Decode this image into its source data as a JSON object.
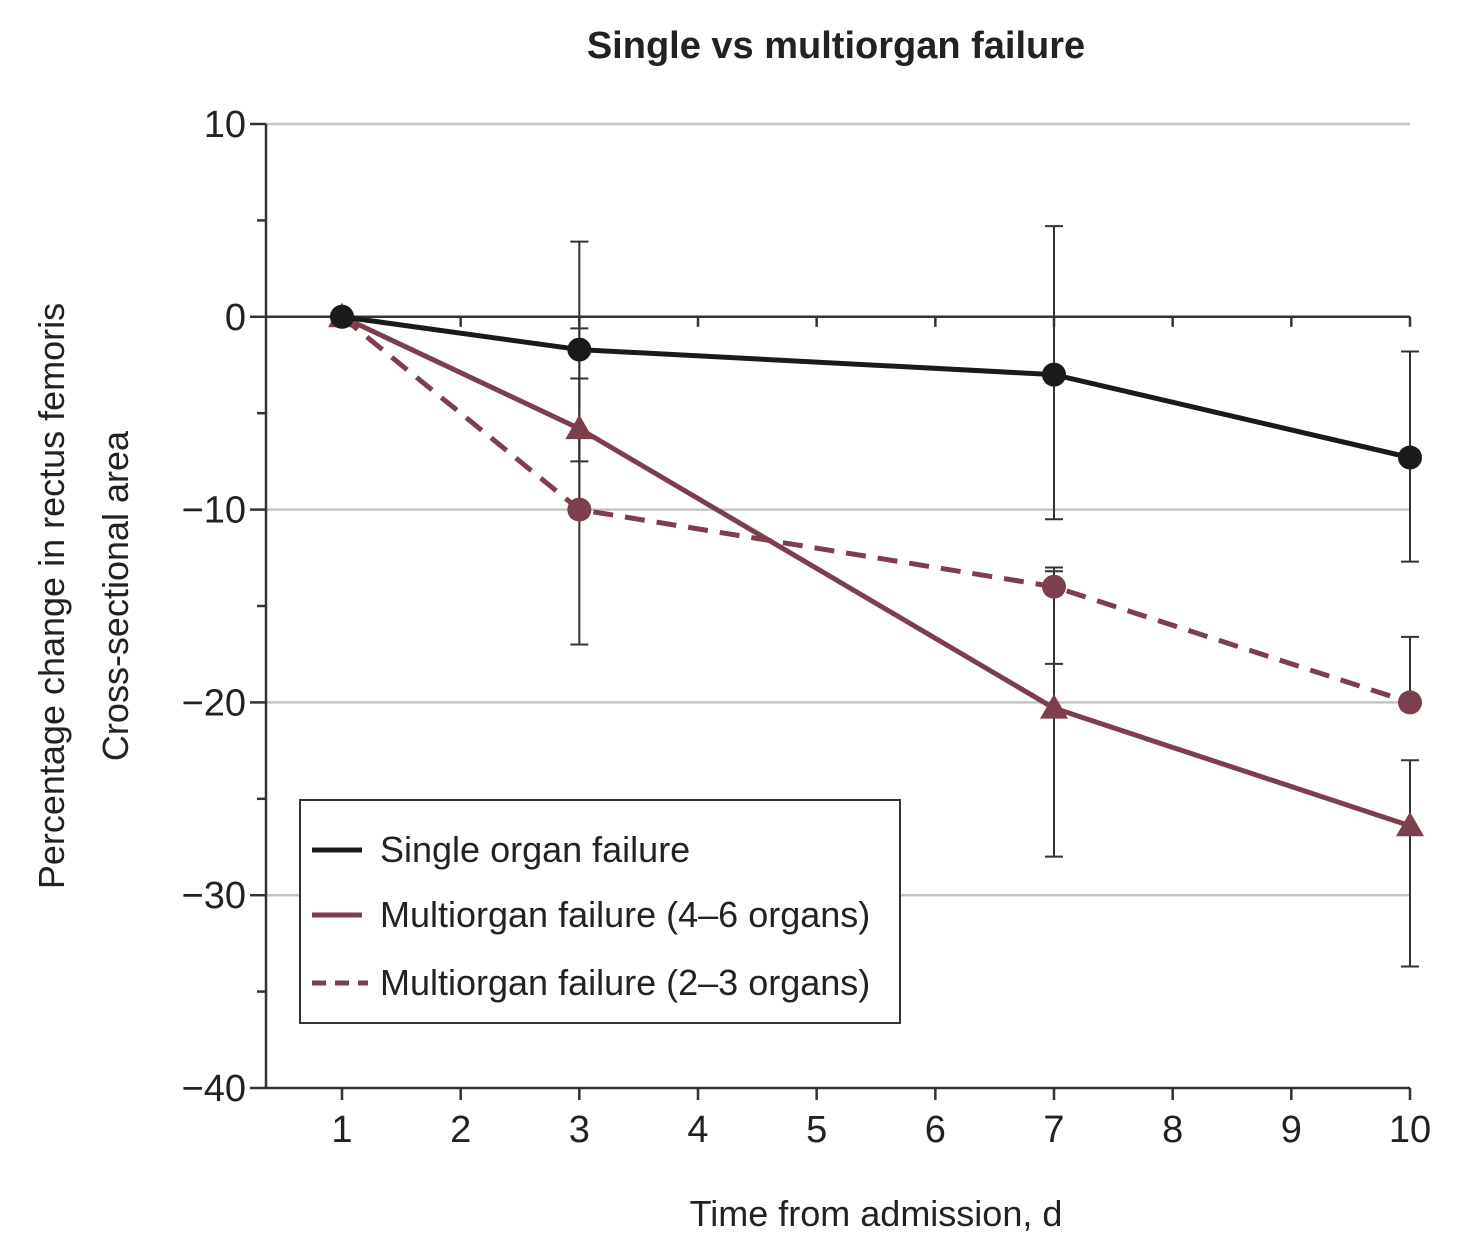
{
  "chart_data": {
    "type": "line",
    "title": "Single vs multiorgan failure",
    "xlabel": "Time from admission, d",
    "ylabel_lines": [
      "Percentage change in rectus femoris",
      "Cross-sectional area"
    ],
    "xlim": [
      0.4,
      10
    ],
    "ylim": [
      -40,
      10
    ],
    "x_ticks": [
      1,
      2,
      3,
      4,
      5,
      6,
      7,
      8,
      9,
      10
    ],
    "x_tick_labels": [
      "1",
      "2",
      "3",
      "4",
      "5",
      "6",
      "7",
      "8",
      "9",
      "10"
    ],
    "y_ticks": [
      10,
      0,
      -10,
      -20,
      -30,
      -40
    ],
    "y_tick_labels": [
      "10",
      "0",
      "−10",
      "−20",
      "−30",
      "−40"
    ],
    "y_minor_ticks": [
      5,
      -5,
      -15,
      -25,
      -35
    ],
    "gridlines_y": [
      10,
      -10,
      -20,
      -30
    ],
    "legend_position": "lower-left",
    "series": [
      {
        "name": "Single organ failure",
        "color": "#1a1a1a",
        "dash": "solid",
        "marker": "circle",
        "points": [
          {
            "x": 1,
            "y": 0,
            "lo": null,
            "hi": null
          },
          {
            "x": 3,
            "y": -1.7,
            "lo": -7.5,
            "hi": 3.9
          },
          {
            "x": 7,
            "y": -3,
            "lo": -10.5,
            "hi": 4.7
          },
          {
            "x": 10,
            "y": -7.3,
            "lo": -12.7,
            "hi": -1.8
          }
        ]
      },
      {
        "name": "Multiorgan failure (4–6 organs)",
        "color": "#7d3e4e",
        "dash": "solid",
        "marker": "triangle",
        "points": [
          {
            "x": 1,
            "y": 0,
            "lo": null,
            "hi": null
          },
          {
            "x": 3,
            "y": -5.8,
            "lo": -10.4,
            "hi": -0.6
          },
          {
            "x": 7,
            "y": -20.3,
            "lo": -28,
            "hi": -13.2
          },
          {
            "x": 10,
            "y": -26.4,
            "lo": -33.7,
            "hi": -23
          }
        ]
      },
      {
        "name": "Multiorgan failure (2–3 organs)",
        "color": "#7d3e4e",
        "dash": "dashed",
        "marker": "circle",
        "points": [
          {
            "x": 1,
            "y": 0,
            "lo": null,
            "hi": null
          },
          {
            "x": 3,
            "y": -10,
            "lo": -17,
            "hi": -3.2
          },
          {
            "x": 7,
            "y": -14,
            "lo": -18,
            "hi": -13
          },
          {
            "x": 10,
            "y": -20,
            "lo": -20,
            "hi": -16.6
          }
        ]
      }
    ]
  }
}
